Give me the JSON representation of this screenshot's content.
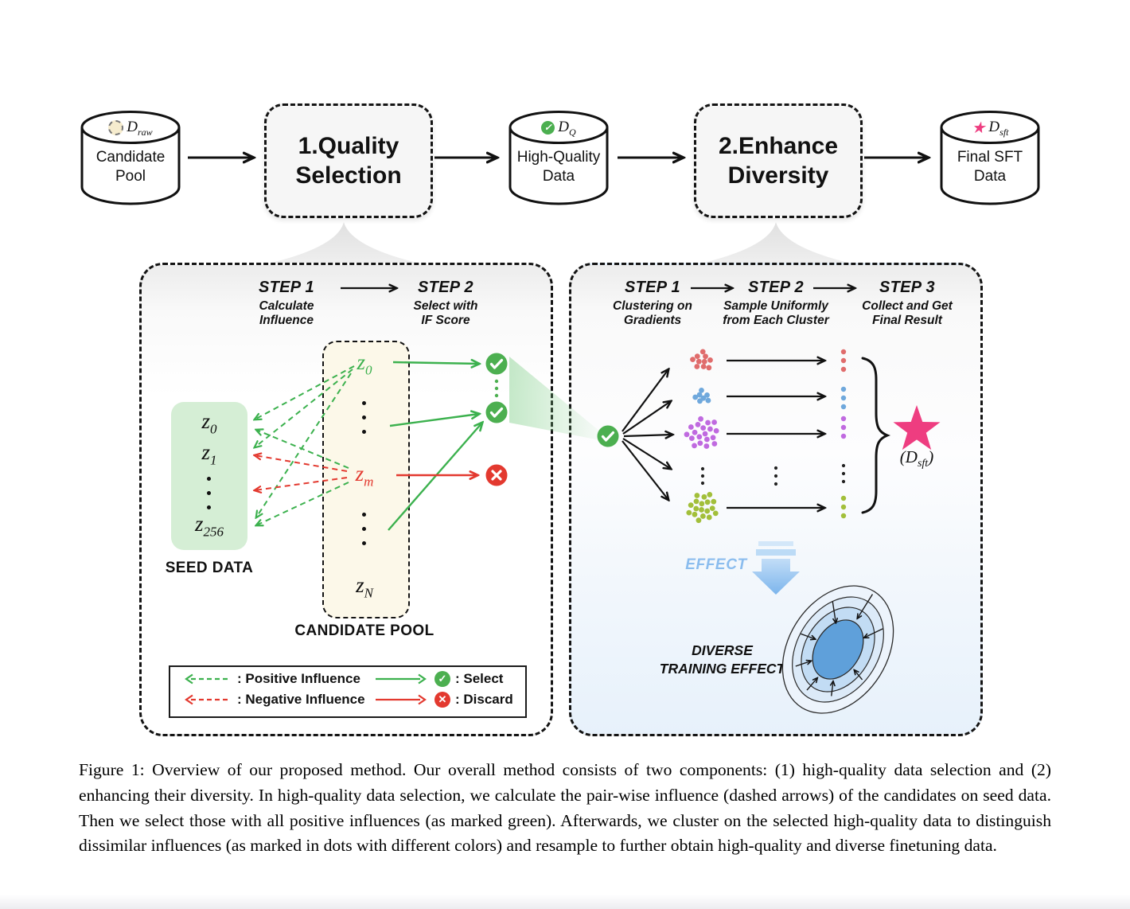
{
  "pipeline": {
    "nodes": [
      {
        "kind": "cylinder",
        "icon": "dashed-circle-icon",
        "math_base": "D",
        "math_sub": "raw",
        "label1": "Candidate",
        "label2": "Pool"
      },
      {
        "kind": "process",
        "label1": "1.Quality",
        "label2": "Selection"
      },
      {
        "kind": "cylinder",
        "icon": "check-icon",
        "math_base": "D",
        "math_sub": "Q",
        "label1": "High-Quality",
        "label2": "Data"
      },
      {
        "kind": "process",
        "label1": "2.Enhance",
        "label2": "Diversity"
      },
      {
        "kind": "cylinder",
        "icon": "star-icon",
        "math_base": "D",
        "math_sub": "sft",
        "label1": "Final SFT",
        "label2": "Data"
      }
    ]
  },
  "quality_panel": {
    "step1": {
      "title": "STEP 1",
      "line1": "Calculate",
      "line2": "Influence"
    },
    "step2": {
      "title": "STEP 2",
      "line1": "Select with",
      "line2": "IF Score"
    },
    "seed": {
      "label": "SEED DATA",
      "items": [
        {
          "base": "z",
          "sub": "0"
        },
        {
          "base": "z",
          "sub": "1"
        },
        {
          "ellipsis": true
        },
        {
          "base": "z",
          "sub": "256"
        }
      ]
    },
    "candidate": {
      "label": "CANDIDATE POOL",
      "items": [
        {
          "base": "z",
          "sub": "0",
          "color": "#3cb14e"
        },
        {
          "ellipsis": true
        },
        {
          "base": "z",
          "sub": "m",
          "color": "#e3392f"
        },
        {
          "ellipsis": true
        },
        {
          "base": "z",
          "sub": "N",
          "color": "#111111"
        }
      ]
    },
    "legend": {
      "positive": ": Positive Influence",
      "negative": ": Negative Influence",
      "select": ": Select",
      "discard": ": Discard",
      "check_glyph": "✓",
      "cross_glyph": "✕"
    }
  },
  "diversity_panel": {
    "step1": {
      "title": "STEP 1",
      "line1": "Clustering on",
      "line2": "Gradients"
    },
    "step2": {
      "title": "STEP 2",
      "line1": "Sample Uniformly",
      "line2": "from Each Cluster"
    },
    "step3": {
      "title": "STEP 3",
      "line1": "Collect and Get",
      "line2": "Final Result"
    },
    "clusters": [
      {
        "color": "#e06c6c",
        "count": 10
      },
      {
        "color": "#6fa8dc",
        "count": 7
      },
      {
        "color": "#c06ae0",
        "count": 19
      },
      {
        "ellipsis": true
      },
      {
        "color": "#a2bf3a",
        "count": 18
      }
    ],
    "samples_per_cluster": 3,
    "star_caption": {
      "open": "(",
      "symbol": "D",
      "sub": "sft",
      "close": ")"
    },
    "effect_label": "EFFECT",
    "result_line1": "DIVERSE",
    "result_line2": "TRAINING EFFECT"
  },
  "caption": "Figure 1: Overview of our proposed method. Our overall method consists of two components: (1) high-quality data selection and (2) enhancing their diversity. In high-quality data selection, we calculate the pair-wise influence (dashed arrows) of the candidates on seed data. Then we select those with all positive influences (as marked green). Afterwards, we cluster on the selected high-quality data to distinguish dissimilar influences (as marked in dots with different colors) and resample to further obtain high-quality and diverse finetuning data.",
  "colors": {
    "positive_green": "#3cb14e",
    "negative_red": "#e3392f",
    "select_badge": "#4caf50",
    "star_pink": "#ee3d80",
    "effect_blue": "#8bbdee",
    "blob_blue": "#5fa0da",
    "seed_bg": "#d5eed5",
    "candidate_bg": "#fcf8e9"
  }
}
